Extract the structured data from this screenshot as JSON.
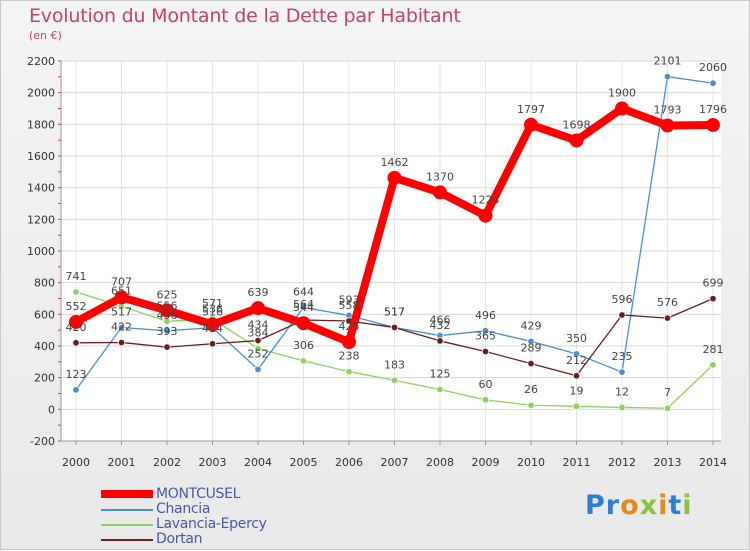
{
  "chart_data": {
    "type": "line",
    "title": "Evolution du Montant de la Dette par Habitant",
    "subtitle": "(en €)",
    "x": [
      "2000",
      "2001",
      "2002",
      "2003",
      "2004",
      "2005",
      "2006",
      "2007",
      "2008",
      "2009",
      "2010",
      "2011",
      "2012",
      "2013",
      "2014"
    ],
    "ylim": [
      -200,
      2200
    ],
    "yticks": [
      -200,
      0,
      200,
      400,
      600,
      800,
      1000,
      1200,
      1400,
      1600,
      1800,
      2000,
      2200
    ],
    "grid": true,
    "legend_position": "bottom-left",
    "series": [
      {
        "name": "MONTCUSEL",
        "color": "#ff0000",
        "values": [
          552,
          707,
          625,
          536,
          639,
          544,
          425,
          1462,
          1370,
          1223,
          1797,
          1698,
          1900,
          1793,
          1796
        ]
      },
      {
        "name": "Chancia",
        "color": "#4a90d0",
        "values": [
          123,
          517,
          496,
          516,
          252,
          644,
          593,
          517,
          466,
          496,
          429,
          350,
          235,
          2101,
          2060
        ]
      },
      {
        "name": "Lavancia-Epercy",
        "color": "#8ed160",
        "values": [
          741,
          651,
          556,
          571,
          384,
          306,
          238,
          183,
          125,
          60,
          26,
          19,
          12,
          7,
          281
        ]
      },
      {
        "name": "Dortan",
        "color": "#6b1e1e",
        "values": [
          420,
          422,
          393,
          414,
          434,
          564,
          558,
          517,
          432,
          365,
          289,
          212,
          596,
          576,
          699
        ]
      }
    ]
  },
  "logo": {
    "text": "Proxiti",
    "letters": [
      "P",
      "r",
      "o",
      "x",
      "i",
      "t",
      "i"
    ],
    "colors": [
      "#2e7fd3",
      "#2e7fd3",
      "#e38b1a",
      "#8ac43a",
      "#e38b1a",
      "#2e7fd3",
      "#8ac43a"
    ]
  }
}
